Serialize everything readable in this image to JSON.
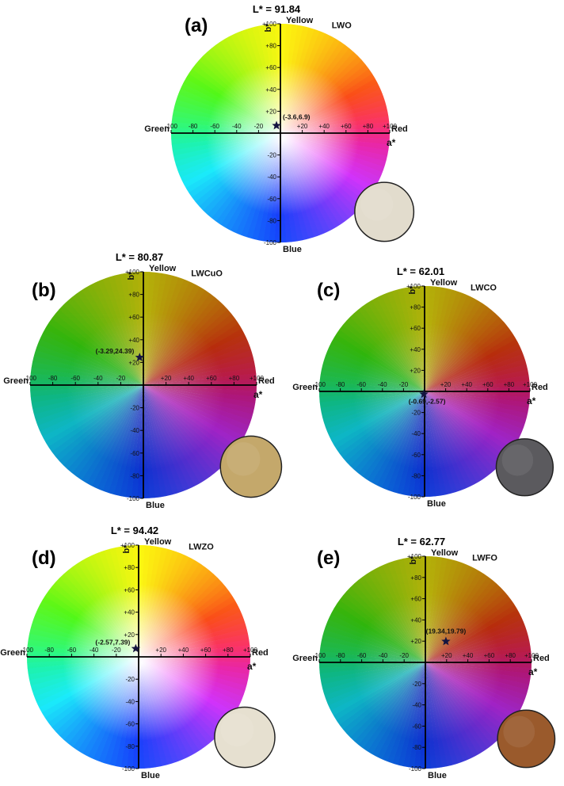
{
  "figure": {
    "axis_text": {
      "left": "Green",
      "right": "Red",
      "top": "Yellow",
      "bottom": "Blue",
      "a_axis": "a*",
      "b_axis": "b*"
    },
    "x_ticks": [
      "-100",
      "-80",
      "-60",
      "-40",
      "-20",
      "+20",
      "+40",
      "+60",
      "+80",
      "+100"
    ],
    "y_ticks": [
      "+100",
      "+80",
      "+60",
      "+40",
      "+20",
      "-20",
      "-40",
      "-60",
      "-80",
      "-100"
    ]
  },
  "chart_data": [
    {
      "type": "scatter",
      "panel_label": "(a)",
      "sample": "LWO",
      "lightness_label": "L* = 91.84",
      "lightness": 91.84,
      "xlabel": "a*",
      "ylabel": "b*",
      "xlim": [
        -100,
        100
      ],
      "ylim": [
        -100,
        100
      ],
      "points": [
        {
          "x": -3.6,
          "y": 6.9,
          "label": "(-3.6,6.9)"
        }
      ],
      "swatch_color": "#e2dccd"
    },
    {
      "type": "scatter",
      "panel_label": "(b)",
      "sample": "LWCuO",
      "lightness_label": "L* = 80.87",
      "lightness": 80.87,
      "xlabel": "a*",
      "ylabel": "b*",
      "xlim": [
        -100,
        100
      ],
      "ylim": [
        -100,
        100
      ],
      "points": [
        {
          "x": -3.29,
          "y": 24.39,
          "label": "(-3.29,24.39)"
        }
      ],
      "swatch_color": "#c4a86b"
    },
    {
      "type": "scatter",
      "panel_label": "(c)",
      "sample": "LWCO",
      "lightness_label": "L* = 62.01",
      "lightness": 62.01,
      "xlabel": "a*",
      "ylabel": "b*",
      "xlim": [
        -100,
        100
      ],
      "ylim": [
        -100,
        100
      ],
      "points": [
        {
          "x": -0.69,
          "y": -2.57,
          "label": "(-0.69,-2.57)"
        }
      ],
      "swatch_color": "#5b5a5e"
    },
    {
      "type": "scatter",
      "panel_label": "(d)",
      "sample": "LWZO",
      "lightness_label": "L* = 94.42",
      "lightness": 94.42,
      "xlabel": "a*",
      "ylabel": "b*",
      "xlim": [
        -100,
        100
      ],
      "ylim": [
        -100,
        100
      ],
      "points": [
        {
          "x": -2.57,
          "y": 7.39,
          "label": "(-2.57,7.39)"
        }
      ],
      "swatch_color": "#e6e0d0"
    },
    {
      "type": "scatter",
      "panel_label": "(e)",
      "sample": "LWFO",
      "lightness_label": "L* = 62.77",
      "lightness": 62.77,
      "xlabel": "a*",
      "ylabel": "b*",
      "xlim": [
        -100,
        100
      ],
      "ylim": [
        -100,
        100
      ],
      "points": [
        {
          "x": 19.34,
          "y": 19.79,
          "label": "(19.34,19.79)"
        }
      ],
      "swatch_color": "#9a5a2c"
    }
  ]
}
